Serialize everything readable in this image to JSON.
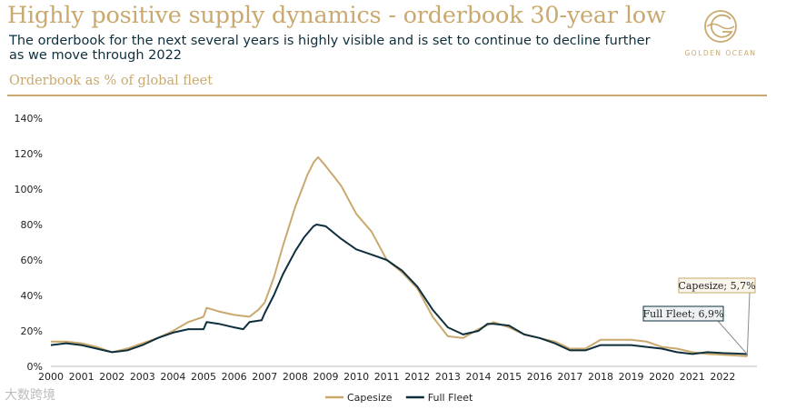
{
  "header": {
    "title": "Highly positive supply dynamics - orderbook 30-year low",
    "subtitle": "The orderbook for the next several years is highly visible and is set to continue to decline further as we move through 2022",
    "section_label": "Orderbook as % of global fleet"
  },
  "logo": {
    "text": "GOLDEN OCEAN"
  },
  "watermark": {
    "text": "大数跨境"
  },
  "colors": {
    "accent": "#c9a96e",
    "capesize": "#c9a96e",
    "full_fleet": "#0f2f3d",
    "text": "#0f2f3d"
  },
  "chart_data": {
    "type": "line",
    "title": "Orderbook as % of global fleet",
    "xlabel": "",
    "ylabel": "",
    "xlim": [
      2000,
      2023
    ],
    "ylim": [
      0,
      140
    ],
    "y_ticks": [
      "0%",
      "20%",
      "40%",
      "60%",
      "80%",
      "100%",
      "120%",
      "140%"
    ],
    "y_tick_values": [
      0,
      20,
      40,
      60,
      80,
      100,
      120,
      140
    ],
    "x_ticks": [
      "2000",
      "2001",
      "2002",
      "2003",
      "2004",
      "2005",
      "2006",
      "2007",
      "2008",
      "2009",
      "2010",
      "2011",
      "2012",
      "2013",
      "2014",
      "2015",
      "2016",
      "2017",
      "2018",
      "2019",
      "2020",
      "2021",
      "2022"
    ],
    "grid": false,
    "legend_position": "bottom-center",
    "series": [
      {
        "name": "Capesize",
        "color": "#c9a96e",
        "points": [
          [
            2000,
            14
          ],
          [
            2000.5,
            14
          ],
          [
            2001,
            13
          ],
          [
            2001.5,
            11
          ],
          [
            2002,
            8
          ],
          [
            2002.5,
            10
          ],
          [
            2003,
            13
          ],
          [
            2003.5,
            16
          ],
          [
            2004,
            20
          ],
          [
            2004.5,
            25
          ],
          [
            2005,
            28
          ],
          [
            2005.1,
            33
          ],
          [
            2005.5,
            31
          ],
          [
            2006,
            29
          ],
          [
            2006.5,
            28
          ],
          [
            2006.8,
            32
          ],
          [
            2007,
            36
          ],
          [
            2007.3,
            50
          ],
          [
            2007.6,
            68
          ],
          [
            2008,
            90
          ],
          [
            2008.4,
            108
          ],
          [
            2008.6,
            115
          ],
          [
            2008.75,
            118
          ],
          [
            2009,
            113
          ],
          [
            2009.5,
            102
          ],
          [
            2010,
            86
          ],
          [
            2010.5,
            76
          ],
          [
            2011,
            60
          ],
          [
            2011.5,
            53
          ],
          [
            2012,
            44
          ],
          [
            2012.5,
            28
          ],
          [
            2013,
            17
          ],
          [
            2013.5,
            16
          ],
          [
            2014,
            21
          ],
          [
            2014.5,
            25
          ],
          [
            2015,
            22
          ],
          [
            2015.5,
            18
          ],
          [
            2016,
            16
          ],
          [
            2016.5,
            14
          ],
          [
            2017,
            10
          ],
          [
            2017.5,
            10
          ],
          [
            2018,
            15
          ],
          [
            2018.5,
            15
          ],
          [
            2019,
            15
          ],
          [
            2019.5,
            14
          ],
          [
            2020,
            11
          ],
          [
            2020.5,
            10
          ],
          [
            2021,
            8
          ],
          [
            2021.5,
            7
          ],
          [
            2022,
            6.5
          ],
          [
            2022.5,
            6
          ],
          [
            2022.8,
            5.7
          ]
        ]
      },
      {
        "name": "Full Fleet",
        "color": "#0f2f3d",
        "points": [
          [
            2000,
            12
          ],
          [
            2000.5,
            13
          ],
          [
            2001,
            12
          ],
          [
            2001.5,
            10
          ],
          [
            2002,
            8
          ],
          [
            2002.5,
            9
          ],
          [
            2003,
            12
          ],
          [
            2003.5,
            16
          ],
          [
            2004,
            19
          ],
          [
            2004.5,
            21
          ],
          [
            2005,
            21
          ],
          [
            2005.1,
            25
          ],
          [
            2005.5,
            24
          ],
          [
            2006,
            22
          ],
          [
            2006.3,
            21
          ],
          [
            2006.5,
            25
          ],
          [
            2006.9,
            26
          ],
          [
            2007,
            30
          ],
          [
            2007.3,
            40
          ],
          [
            2007.6,
            52
          ],
          [
            2008,
            65
          ],
          [
            2008.3,
            73
          ],
          [
            2008.6,
            79
          ],
          [
            2008.7,
            80
          ],
          [
            2009,
            79
          ],
          [
            2009.5,
            72
          ],
          [
            2010,
            66
          ],
          [
            2010.5,
            63
          ],
          [
            2011,
            60
          ],
          [
            2011.5,
            54
          ],
          [
            2012,
            45
          ],
          [
            2012.5,
            32
          ],
          [
            2013,
            22
          ],
          [
            2013.5,
            18
          ],
          [
            2014,
            20
          ],
          [
            2014.3,
            24
          ],
          [
            2014.5,
            24
          ],
          [
            2015,
            23
          ],
          [
            2015.5,
            18
          ],
          [
            2016,
            16
          ],
          [
            2016.5,
            13
          ],
          [
            2017,
            9
          ],
          [
            2017.5,
            9
          ],
          [
            2018,
            12
          ],
          [
            2018.5,
            12
          ],
          [
            2019,
            12
          ],
          [
            2019.5,
            11
          ],
          [
            2020,
            10
          ],
          [
            2020.5,
            8
          ],
          [
            2021,
            7
          ],
          [
            2021.5,
            8
          ],
          [
            2022,
            7.5
          ],
          [
            2022.5,
            7.2
          ],
          [
            2022.8,
            6.9
          ]
        ]
      }
    ],
    "annotations": [
      {
        "text": "Capesize; 5,7%",
        "series": "Capesize",
        "x": 2022.8,
        "y": 5.7
      },
      {
        "text": "Full Fleet; 6,9%",
        "series": "Full Fleet",
        "x": 2022.8,
        "y": 6.9
      }
    ]
  }
}
